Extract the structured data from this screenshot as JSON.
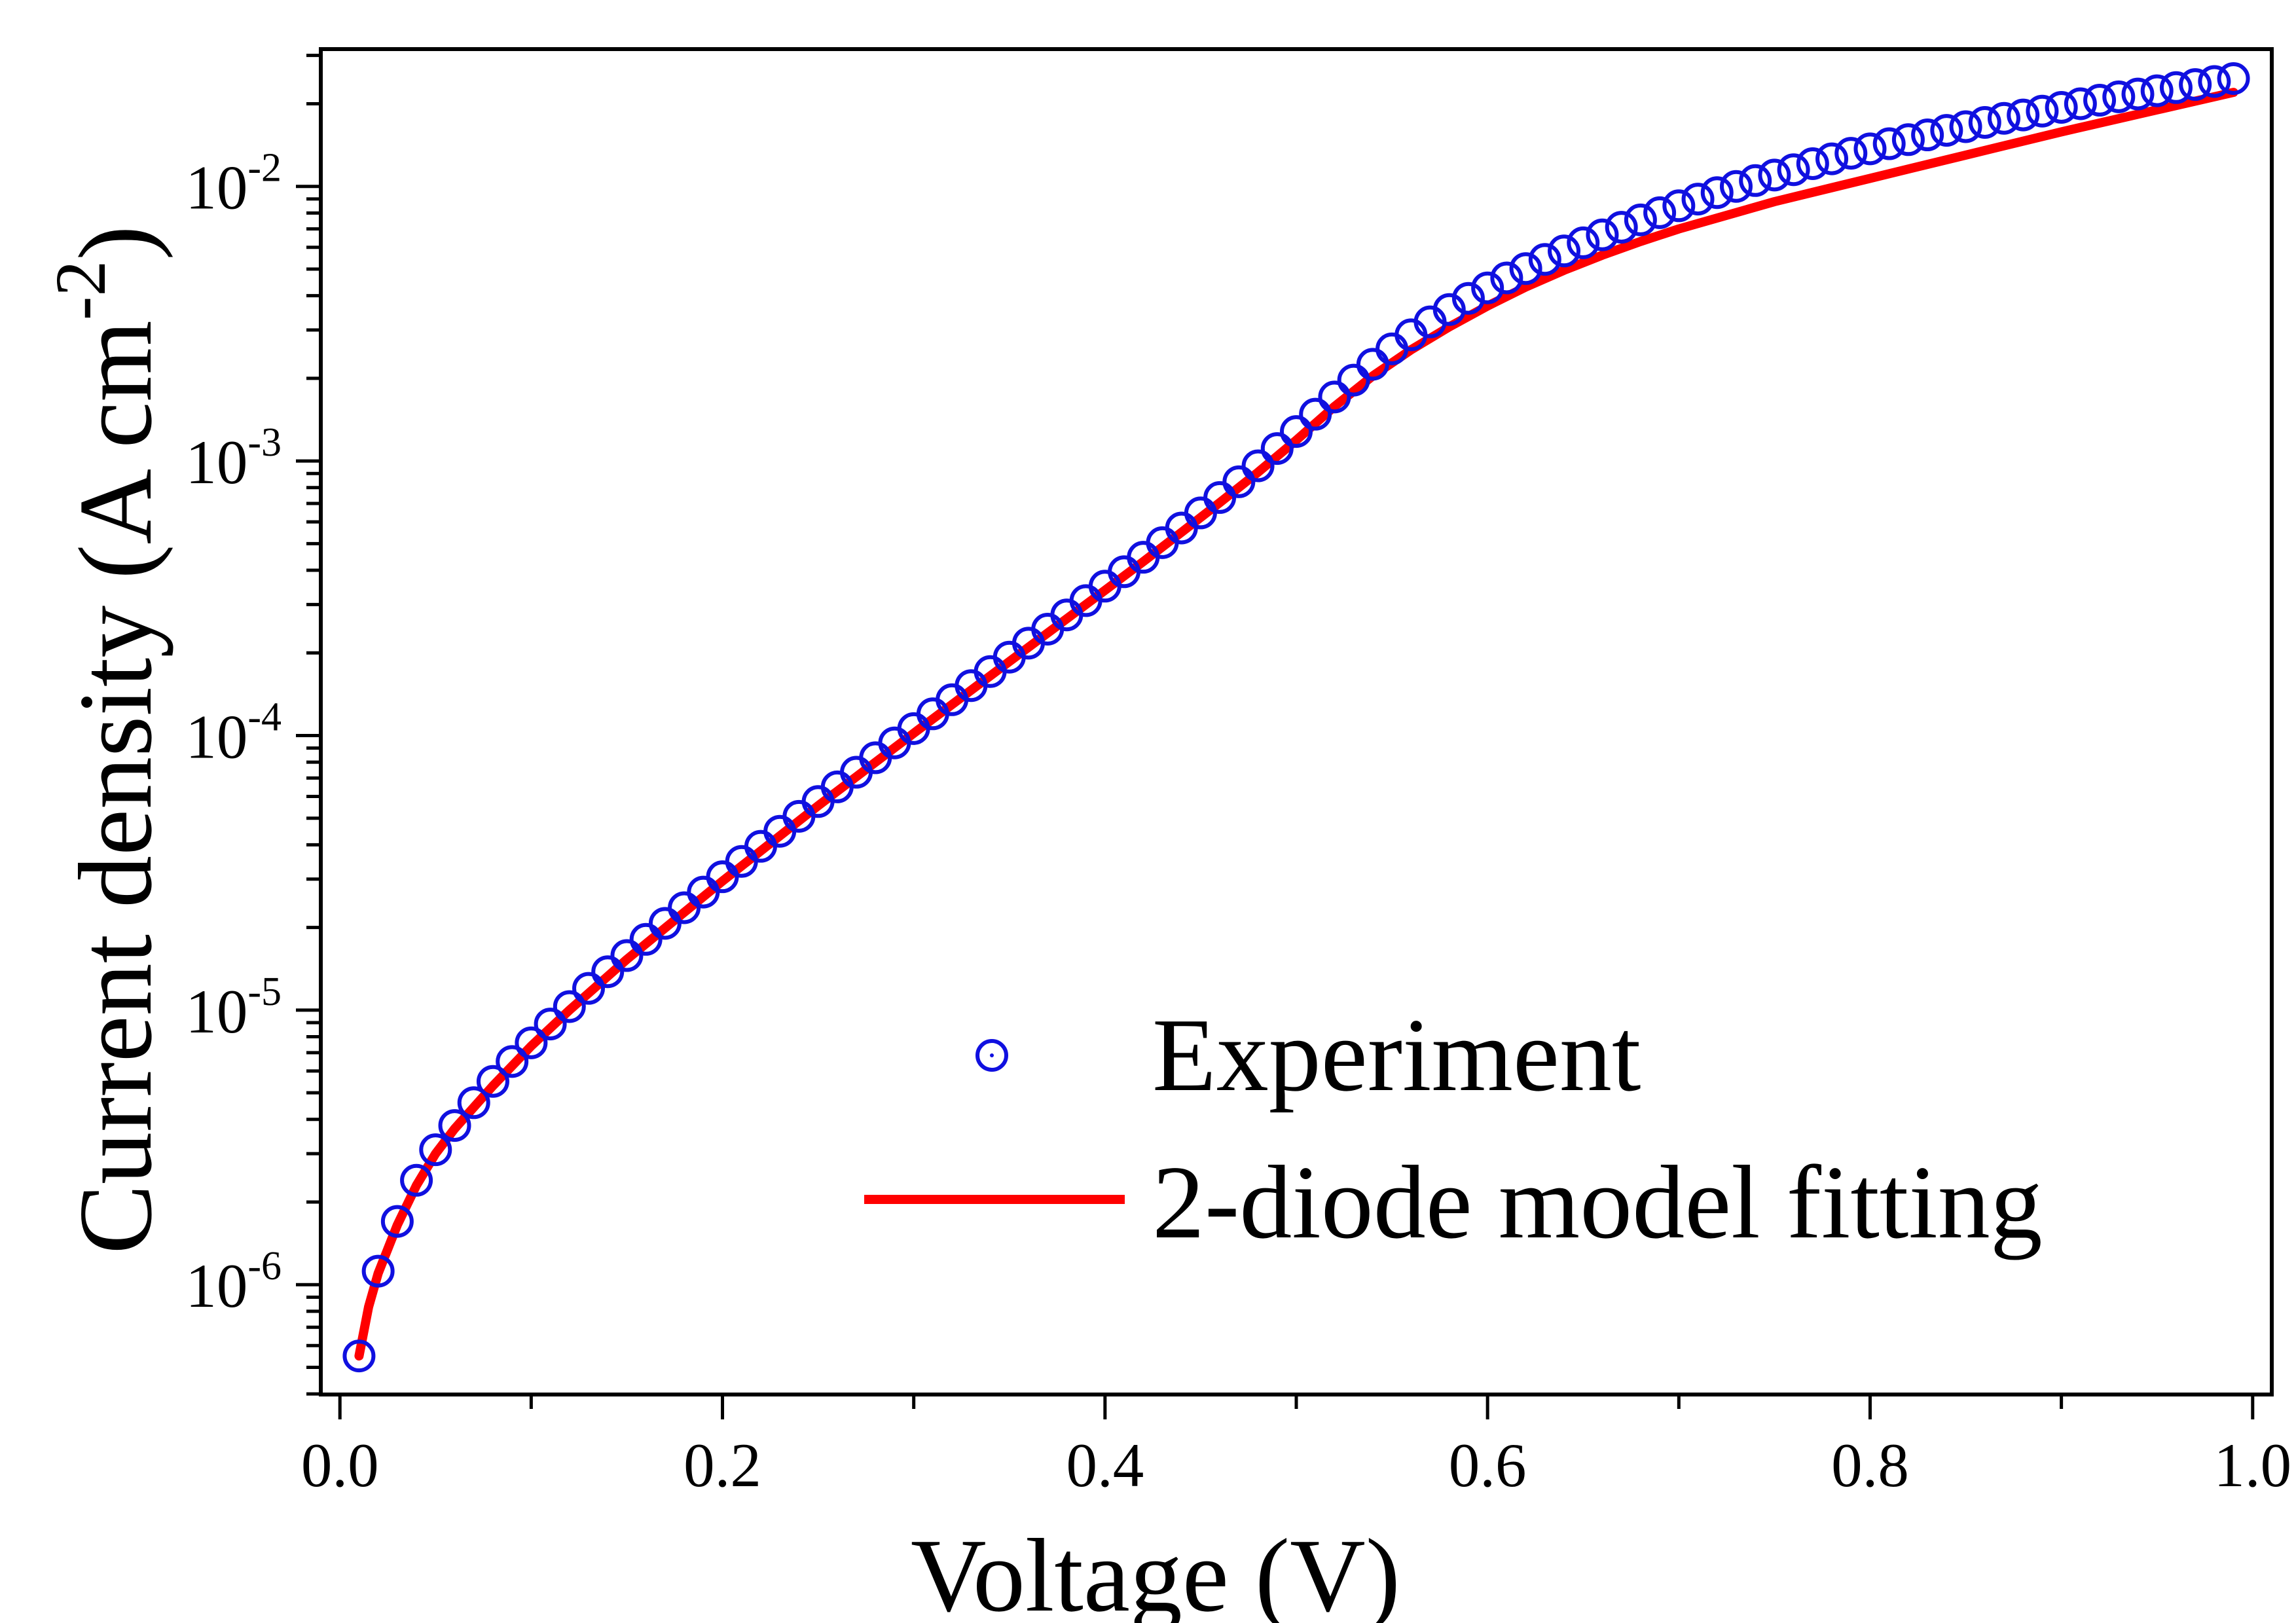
{
  "chart_data": {
    "type": "scatter",
    "xlabel": "Voltage (V)",
    "ylabel": "Current density (A cm",
    "ylabel_sup": "-2",
    "ylabel_close": ")",
    "xlim": [
      -0.01,
      1.01
    ],
    "ylim_log10": [
      -6.4,
      -1.5
    ],
    "y_scale": "log",
    "x_ticks": [
      {
        "value": 0.0,
        "label": "0.0"
      },
      {
        "value": 0.2,
        "label": "0.2"
      },
      {
        "value": 0.4,
        "label": "0.4"
      },
      {
        "value": 0.6,
        "label": "0.6"
      },
      {
        "value": 0.8,
        "label": "0.8"
      },
      {
        "value": 1.0,
        "label": "1.0"
      }
    ],
    "y_ticks": [
      {
        "value": 1e-06,
        "base": "10",
        "exp": "-6"
      },
      {
        "value": 1e-05,
        "base": "10",
        "exp": "-5"
      },
      {
        "value": 0.0001,
        "base": "10",
        "exp": "-4"
      },
      {
        "value": 0.001,
        "base": "10",
        "exp": "-3"
      },
      {
        "value": 0.01,
        "base": "10",
        "exp": "-2"
      }
    ],
    "grid": false,
    "legend_position": "bottom-right",
    "series": [
      {
        "name": "Experiment",
        "kind": "markers",
        "marker": "open-circle-dot",
        "color": "#1010e0",
        "x": [
          0.01,
          0.02,
          0.03,
          0.04,
          0.05,
          0.06,
          0.07,
          0.08,
          0.09,
          0.1,
          0.11,
          0.12,
          0.13,
          0.14,
          0.15,
          0.16,
          0.17,
          0.18,
          0.19,
          0.2,
          0.21,
          0.22,
          0.23,
          0.24,
          0.25,
          0.26,
          0.27,
          0.28,
          0.29,
          0.3,
          0.31,
          0.32,
          0.33,
          0.34,
          0.35,
          0.36,
          0.37,
          0.38,
          0.39,
          0.4,
          0.41,
          0.42,
          0.43,
          0.44,
          0.45,
          0.46,
          0.47,
          0.48,
          0.49,
          0.5,
          0.51,
          0.52,
          0.53,
          0.54,
          0.55,
          0.56,
          0.57,
          0.58,
          0.59,
          0.6,
          0.61,
          0.62,
          0.63,
          0.64,
          0.65,
          0.66,
          0.67,
          0.68,
          0.69,
          0.7,
          0.71,
          0.72,
          0.73,
          0.74,
          0.75,
          0.76,
          0.77,
          0.78,
          0.79,
          0.8,
          0.81,
          0.82,
          0.83,
          0.84,
          0.85,
          0.86,
          0.87,
          0.88,
          0.89,
          0.9,
          0.91,
          0.92,
          0.93,
          0.94,
          0.95,
          0.96,
          0.97,
          0.98,
          0.99
        ],
        "y": [
          5.5e-07,
          1.12e-06,
          1.7e-06,
          2.4e-06,
          3.1e-06,
          3.8e-06,
          4.6e-06,
          5.5e-06,
          6.5e-06,
          7.6e-06,
          8.9e-06,
          1.03e-05,
          1.2e-05,
          1.38e-05,
          1.58e-05,
          1.81e-05,
          2.07e-05,
          2.36e-05,
          2.69e-05,
          3.06e-05,
          3.48e-05,
          3.95e-05,
          4.48e-05,
          5.08e-05,
          5.75e-05,
          6.5e-05,
          7.35e-05,
          8.3e-05,
          9.4e-05,
          0.000106,
          0.00012,
          0.000135,
          0.000152,
          0.000171,
          0.000193,
          0.000217,
          0.000244,
          0.000275,
          0.00031,
          0.00035,
          0.000395,
          0.000446,
          0.000504,
          0.00057,
          0.000647,
          0.000736,
          0.00084,
          0.00096,
          0.00111,
          0.00128,
          0.00148,
          0.00171,
          0.00197,
          0.00225,
          0.00256,
          0.00288,
          0.00321,
          0.00356,
          0.00391,
          0.00427,
          0.00464,
          0.00502,
          0.00542,
          0.00582,
          0.00623,
          0.00666,
          0.0071,
          0.00755,
          0.00802,
          0.0085,
          0.00899,
          0.00949,
          0.01,
          0.0105,
          0.011,
          0.0115,
          0.0121,
          0.0126,
          0.0132,
          0.0137,
          0.0143,
          0.0148,
          0.0154,
          0.016,
          0.0165,
          0.0171,
          0.0177,
          0.0182,
          0.0188,
          0.0194,
          0.02,
          0.0206,
          0.0212,
          0.0217,
          0.0223,
          0.0229,
          0.0235,
          0.0241,
          0.0247
        ]
      },
      {
        "name": "2-diode model fitting",
        "kind": "line",
        "color": "#ff0000",
        "x": [
          0.01,
          0.015,
          0.02,
          0.03,
          0.04,
          0.05,
          0.06,
          0.08,
          0.1,
          0.12,
          0.15,
          0.18,
          0.2,
          0.25,
          0.3,
          0.35,
          0.4,
          0.42,
          0.44,
          0.46,
          0.48,
          0.5,
          0.52,
          0.54,
          0.56,
          0.58,
          0.6,
          0.62,
          0.64,
          0.66,
          0.68,
          0.7,
          0.75,
          0.8,
          0.85,
          0.9,
          0.95,
          0.99
        ],
        "y": [
          5.5e-07,
          8.3e-07,
          1.1e-06,
          1.65e-06,
          2.3e-06,
          3e-06,
          3.7e-06,
          5.3e-06,
          7.4e-06,
          1e-05,
          1.53e-05,
          2.27e-05,
          2.95e-05,
          5.55e-05,
          0.000102,
          0.000186,
          0.000338,
          0.00043,
          0.00055,
          0.000705,
          0.00091,
          0.00119,
          0.00158,
          0.00204,
          0.00254,
          0.00308,
          0.00367,
          0.0043,
          0.00495,
          0.00562,
          0.0063,
          0.007,
          0.0088,
          0.0107,
          0.013,
          0.0158,
          0.019,
          0.022
        ]
      }
    ]
  }
}
